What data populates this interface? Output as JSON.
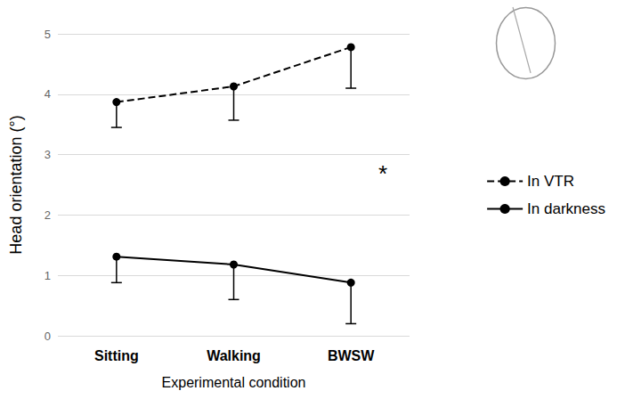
{
  "chart_data": {
    "type": "line",
    "x_label": "Experimental condition",
    "y_label": "Head orientation (°)",
    "categories": [
      "Sitting",
      "Walking",
      "BWSW"
    ],
    "series": [
      {
        "name": "In VTR",
        "color": "#000000",
        "line_style": "dashed",
        "marker": "circle",
        "values": [
          3.87,
          4.13,
          4.78
        ],
        "errors": [
          0.42,
          0.56,
          0.68
        ]
      },
      {
        "name": "In darkness",
        "color": "#000000",
        "line_style": "solid",
        "marker": "circle",
        "values": [
          1.31,
          1.18,
          0.88
        ],
        "errors": [
          0.43,
          0.58,
          0.68
        ]
      }
    ],
    "ylim": [
      0,
      5
    ],
    "yticks": [
      0,
      1,
      2,
      3,
      4,
      5
    ],
    "grid": true,
    "legend": "right",
    "annotation": "*"
  }
}
